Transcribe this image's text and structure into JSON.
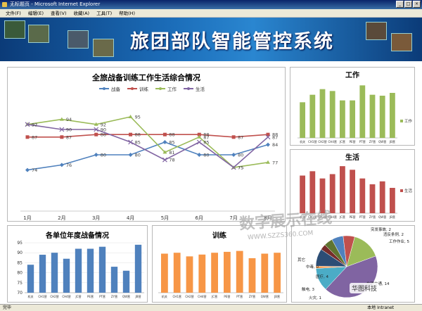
{
  "window": {
    "title": "无标题页 - Microsoft Internet Explorer",
    "buttons": [
      "_",
      "□",
      "×"
    ]
  },
  "menu": [
    "文件(F)",
    "编辑(E)",
    "查看(V)",
    "收藏(A)",
    "工具(T)",
    "帮助(H)"
  ],
  "banner": {
    "title": "旅团部队智能管控系统"
  },
  "status": {
    "left": "完毕",
    "right": "本地 Intranet"
  },
  "watermark": {
    "text": "数字展示在线",
    "url": "WWW.SZZS360.COM",
    "badge": "华图科技"
  },
  "colors": {
    "blue": "#4f81bd",
    "red": "#c0504d",
    "green": "#9bbb59",
    "purple": "#8064a2",
    "orange": "#f79646"
  },
  "chart_data": [
    {
      "type": "line",
      "title": "全旅战备训练工作生活综合情况",
      "categories": [
        "1月",
        "2月",
        "3月",
        "4月",
        "5月",
        "6月",
        "7月",
        "8月"
      ],
      "series": [
        {
          "name": "战备",
          "values": [
            74,
            76,
            80,
            80,
            85,
            80,
            80,
            84
          ]
        },
        {
          "name": "训练",
          "values": [
            87,
            87,
            88,
            88,
            88,
            88,
            87,
            88
          ]
        },
        {
          "name": "工作",
          "values": [
            92,
            94,
            92,
            95,
            81,
            87,
            75,
            77
          ]
        },
        {
          "name": "生活",
          "values": [
            92,
            90,
            90,
            85,
            78,
            85,
            75,
            87
          ]
        }
      ]
    },
    {
      "type": "bar",
      "title": "工作",
      "categories": [
        "机关",
        "CH1营",
        "CH2营",
        "CH4营",
        "JC营",
        "PE营",
        "PT营",
        "ZY营",
        "QW营",
        "JB营"
      ],
      "series": [
        {
          "name": "工作",
          "values": [
            78,
            86,
            92,
            90,
            80,
            80,
            96,
            86,
            85,
            88
          ]
        }
      ]
    },
    {
      "type": "bar",
      "title": "生活",
      "categories": [
        "机关",
        "CH1营",
        "CH2营",
        "CH4营",
        "JC营",
        "PE营",
        "PT营",
        "ZY营",
        "QW营",
        "JB营"
      ],
      "series": [
        {
          "name": "生活",
          "values": [
            82,
            88,
            78,
            84,
            95,
            90,
            78,
            70,
            74,
            65
          ]
        }
      ]
    },
    {
      "type": "bar",
      "title": "各单位年度战备情况",
      "categories": [
        "机关",
        "CH1营",
        "CH2营",
        "CH4营",
        "JC营",
        "PE营",
        "PT营",
        "ZY营",
        "QW营",
        "JB营"
      ],
      "yticks": [
        70,
        75,
        80,
        85,
        90,
        95
      ],
      "ylim": [
        70,
        95
      ],
      "series": [
        {
          "name": "战备",
          "values": [
            84,
            89,
            90,
            87,
            92,
            92,
            93,
            83,
            81,
            94
          ]
        }
      ]
    },
    {
      "type": "bar",
      "title": "训练",
      "categories": [
        "机关",
        "CH1营",
        "CH2营",
        "CH4营",
        "JC营",
        "PE营",
        "PT营",
        "ZY营",
        "QW营",
        "JB营"
      ],
      "series": [
        {
          "name": "训练",
          "values": [
            83,
            84,
            80,
            82,
            84,
            85,
            86,
            78,
            83,
            84
          ]
        }
      ]
    },
    {
      "type": "pie",
      "slices": [
        {
          "label": "突发事故, 2",
          "value": 2,
          "color": "#4f81bd"
        },
        {
          "label": "违反条例, 2",
          "value": 2,
          "color": "#c0504d"
        },
        {
          "label": "工作作业, 5",
          "value": 5,
          "color": "#9bbb59"
        },
        {
          "label": "车辆交通, 14",
          "value": 14,
          "color": "#8064a2"
        },
        {
          "label": "医疗, 4",
          "value": 4,
          "color": "#4bacc6"
        },
        {
          "label": "中毒, 0",
          "value": 0.4,
          "color": "#f79646"
        },
        {
          "label": "触电, 3",
          "value": 3,
          "color": "#2c4d75"
        },
        {
          "label": "火灾, 1",
          "value": 1,
          "color": "#772c2a"
        },
        {
          "label": "其它",
          "value": 1.5,
          "color": "#5f7530"
        }
      ]
    }
  ]
}
